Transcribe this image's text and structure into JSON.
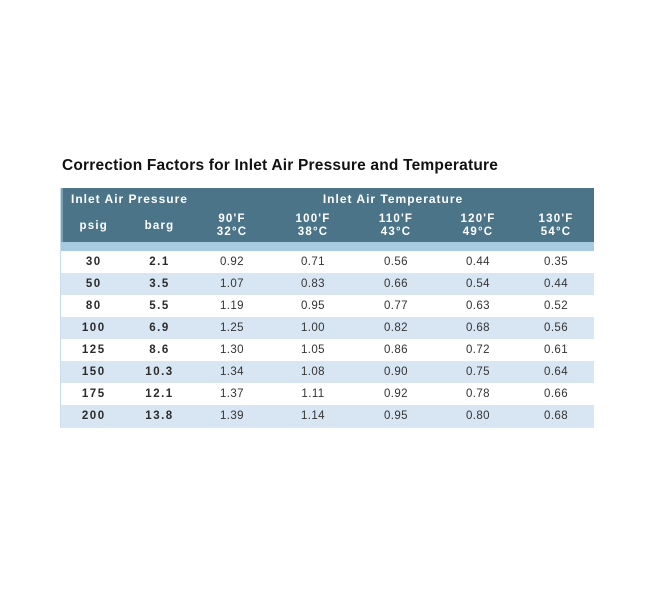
{
  "title": "Correction Factors for Inlet Air Pressure and Temperature",
  "colors": {
    "header_bg": "#4b7488",
    "header_text": "#ffffff",
    "divider_strip": "#a9cbe1",
    "stripe_row": "#d8e6f3",
    "body_text": "#333333",
    "title_text": "#111111"
  },
  "table": {
    "group_headers": [
      {
        "label": "Inlet Air Pressure",
        "colspan": 2
      },
      {
        "label": "Inlet Air Temperature",
        "colspan": 5
      }
    ],
    "column_headers": [
      {
        "line1": "psig",
        "line2": ""
      },
      {
        "line1": "barg",
        "line2": ""
      },
      {
        "line1": "90'F",
        "line2": "32°C"
      },
      {
        "line1": "100'F",
        "line2": "38°C"
      },
      {
        "line1": "110'F",
        "line2": "43°C"
      },
      {
        "line1": "120'F",
        "line2": "49°C"
      },
      {
        "line1": "130'F",
        "line2": "54°C"
      }
    ],
    "rows": [
      [
        "30",
        "2.1",
        "0.92",
        "0.71",
        "0.56",
        "0.44",
        "0.35"
      ],
      [
        "50",
        "3.5",
        "1.07",
        "0.83",
        "0.66",
        "0.54",
        "0.44"
      ],
      [
        "80",
        "5.5",
        "1.19",
        "0.95",
        "0.77",
        "0.63",
        "0.52"
      ],
      [
        "100",
        "6.9",
        "1.25",
        "1.00",
        "0.82",
        "0.68",
        "0.56"
      ],
      [
        "125",
        "8.6",
        "1.30",
        "1.05",
        "0.86",
        "0.72",
        "0.61"
      ],
      [
        "150",
        "10.3",
        "1.34",
        "1.08",
        "0.90",
        "0.75",
        "0.64"
      ],
      [
        "175",
        "12.1",
        "1.37",
        "1.11",
        "0.92",
        "0.78",
        "0.66"
      ],
      [
        "200",
        "13.8",
        "1.39",
        "1.14",
        "0.95",
        "0.80",
        "0.68"
      ]
    ]
  }
}
